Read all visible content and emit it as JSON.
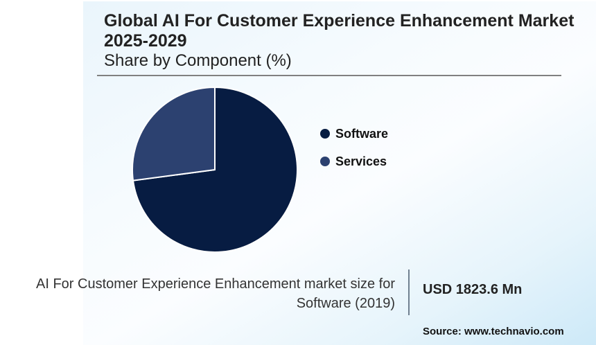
{
  "header": {
    "title": "Global AI For Customer Experience Enhancement Market 2025-2029",
    "subtitle": "Share by Component (%)"
  },
  "chart_data": {
    "type": "pie",
    "title": "Global AI For Customer Experience Enhancement Market 2025-2029",
    "subtitle": "Share by Component (%)",
    "categories": [
      "Software",
      "Services"
    ],
    "values": [
      72.9,
      27.1
    ],
    "colors": [
      "#071c42",
      "#2c4170"
    ],
    "start_angle_deg": 0,
    "direction": "clockwise",
    "legend_position": "right"
  },
  "legend": {
    "items": [
      {
        "label": "Software",
        "color": "#071c42"
      },
      {
        "label": "Services",
        "color": "#2c4170"
      }
    ]
  },
  "footer": {
    "label": "AI For Customer Experience Enhancement market size for Software (2019)",
    "value": "USD 1823.6 Mn",
    "source": "Source: www.technavio.com"
  }
}
